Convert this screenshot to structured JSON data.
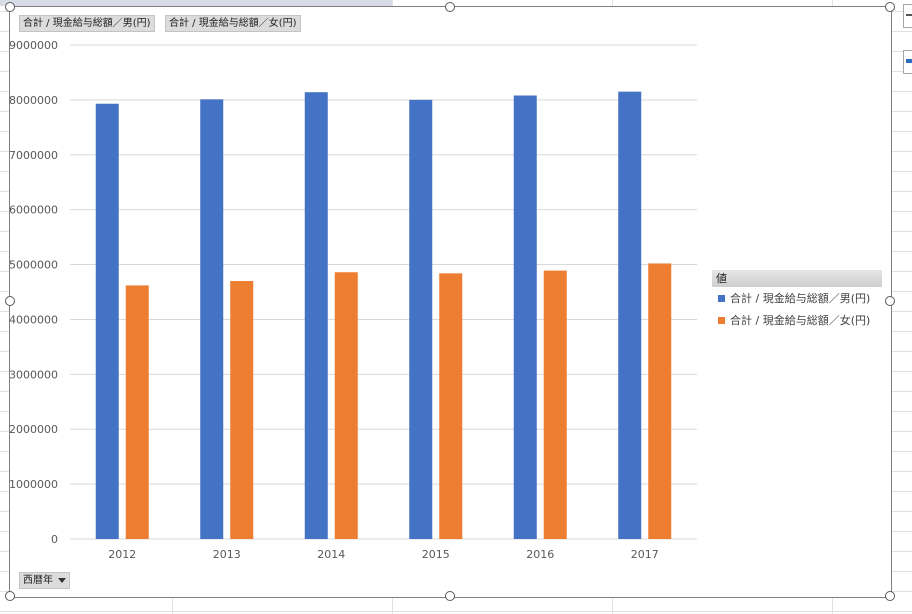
{
  "fields": {
    "data_field_male": "合計 / 現金給与総額／男(円)",
    "data_field_female": "合計 / 現金給与総額／女(円)",
    "axis_field": "西暦年",
    "legend_field": "値"
  },
  "colors": {
    "male": "#4472c4",
    "female": "#ed7d31",
    "grid": "#d9d9d9"
  },
  "chart_data": {
    "type": "bar",
    "categories": [
      "2012",
      "2013",
      "2014",
      "2015",
      "2016",
      "2017"
    ],
    "series": [
      {
        "name": "合計 / 現金給与総額／男(円)",
        "values": [
          7930000,
          8010000,
          8140000,
          8000000,
          8080000,
          8150000
        ]
      },
      {
        "name": "合計 / 現金給与総額／女(円)",
        "values": [
          4620000,
          4700000,
          4860000,
          4840000,
          4890000,
          5020000
        ]
      }
    ],
    "ylim": [
      0,
      9000000
    ],
    "yticks": [
      "0",
      "1000000",
      "2000000",
      "3000000",
      "4000000",
      "5000000",
      "6000000",
      "7000000",
      "8000000",
      "9000000"
    ],
    "grid": true,
    "legend_position": "right"
  }
}
